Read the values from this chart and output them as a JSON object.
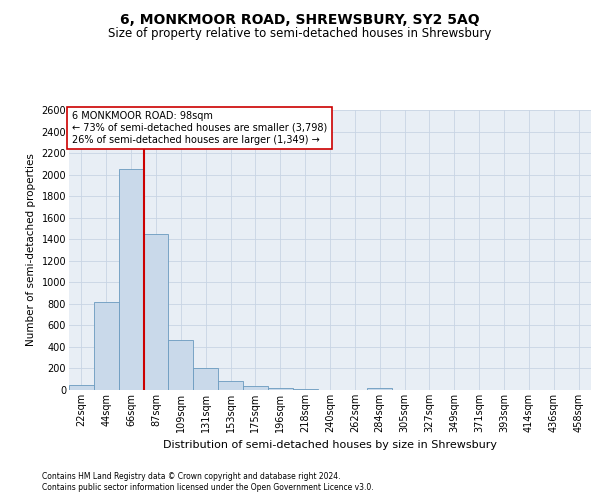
{
  "title": "6, MONKMOOR ROAD, SHREWSBURY, SY2 5AQ",
  "subtitle": "Size of property relative to semi-detached houses in Shrewsbury",
  "xlabel": "Distribution of semi-detached houses by size in Shrewsbury",
  "ylabel": "Number of semi-detached properties",
  "footer1": "Contains HM Land Registry data © Crown copyright and database right 2024.",
  "footer2": "Contains public sector information licensed under the Open Government Licence v3.0.",
  "categories": [
    "22sqm",
    "44sqm",
    "66sqm",
    "87sqm",
    "109sqm",
    "131sqm",
    "153sqm",
    "175sqm",
    "196sqm",
    "218sqm",
    "240sqm",
    "262sqm",
    "284sqm",
    "305sqm",
    "327sqm",
    "349sqm",
    "371sqm",
    "393sqm",
    "414sqm",
    "436sqm",
    "458sqm"
  ],
  "values": [
    50,
    820,
    2050,
    1450,
    460,
    200,
    80,
    35,
    20,
    10,
    0,
    0,
    20,
    0,
    0,
    0,
    0,
    0,
    0,
    0,
    0
  ],
  "bar_color": "#c9d9ea",
  "bar_edge_color": "#6a9abf",
  "red_line_color": "#cc0000",
  "red_line_x": 2.5,
  "annotation_line1": "6 MONKMOOR ROAD: 98sqm",
  "annotation_line2": "← 73% of semi-detached houses are smaller (3,798)",
  "annotation_line3": "26% of semi-detached houses are larger (1,349) →",
  "ylim_max": 2600,
  "ytick_step": 200,
  "grid_color": "#c8d4e4",
  "bg_color": "#e8eef5",
  "title_fontsize": 10,
  "subtitle_fontsize": 8.5,
  "ylabel_fontsize": 7.5,
  "xlabel_fontsize": 8,
  "tick_fontsize": 7,
  "annotation_fontsize": 7,
  "footer_fontsize": 5.5
}
